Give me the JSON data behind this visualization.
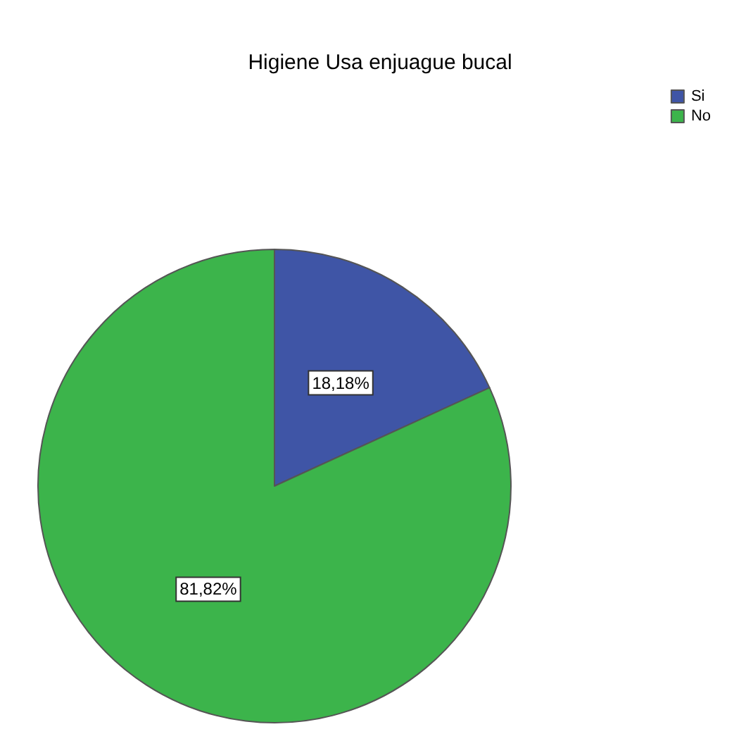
{
  "chart_data": {
    "type": "pie",
    "title": "Higiene Usa enjuague bucal",
    "categories": [
      "Si",
      "No"
    ],
    "values": [
      18.18,
      81.82
    ],
    "value_labels": [
      "18,18%",
      "81,82%"
    ],
    "colors": [
      "#3f55a6",
      "#3cb44b"
    ],
    "legend": "top right"
  }
}
